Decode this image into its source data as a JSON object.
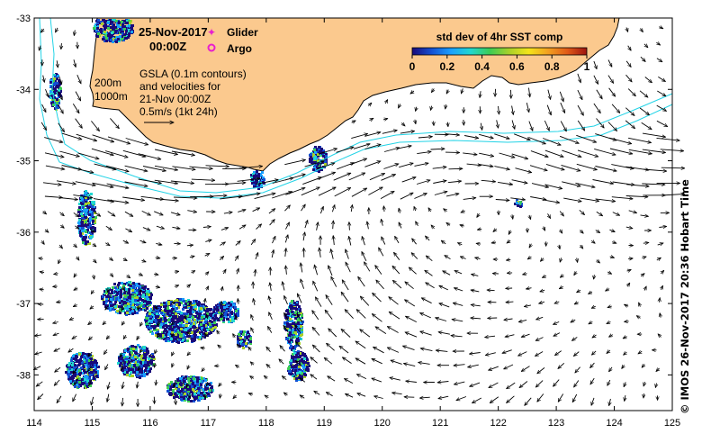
{
  "map": {
    "date_line": "25-Nov-2017",
    "time_line": "00:00Z",
    "legend": {
      "glider": "Glider",
      "argo": "Argo",
      "glider_color": "#e81ecf",
      "argo_color": "#e81ecf"
    },
    "gsla_lines": [
      "GSLA (0.1m contours)",
      "and velocities for",
      "21-Nov 00:00Z",
      "0.5m/s (1kt 24h)"
    ],
    "isobaths": {
      "shallow": "200m",
      "deep": "1000m",
      "color": "#22d3e6"
    },
    "colorbar": {
      "title": "std dev of 4hr SST comp",
      "ticks": [
        "0",
        "0.2",
        "0.4",
        "0.6",
        "0.8",
        "1"
      ],
      "stops": [
        "#1a0a7a",
        "#1450d2",
        "#1aa0ff",
        "#22d7d0",
        "#3ccc55",
        "#a8d02a",
        "#f3e41a",
        "#f2a020",
        "#e05a18",
        "#9c1410"
      ]
    },
    "land_color": "#fbc98e",
    "axes": {
      "x_ticks": [
        "114",
        "115",
        "116",
        "117",
        "118",
        "119",
        "120",
        "121",
        "122",
        "123",
        "124",
        "125"
      ],
      "y_ticks": [
        "-33",
        "-34",
        "-35",
        "-36",
        "-37",
        "-38"
      ],
      "xlim": [
        114,
        125
      ],
      "ylim": [
        -38.5,
        -33
      ]
    },
    "credit": "© IMOS 26-Nov-2017 20:36 Hobart Time"
  }
}
